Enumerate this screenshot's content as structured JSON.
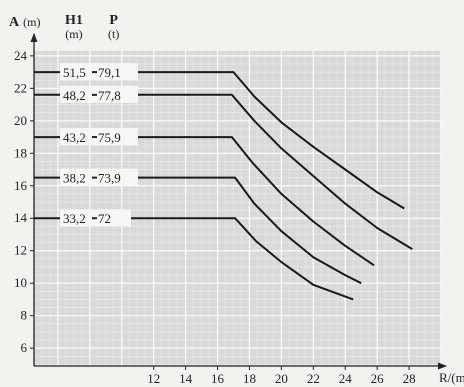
{
  "header": {
    "a_label": "A",
    "a_unit": "(m)",
    "h1_label": "H1",
    "h1_unit": "(m)",
    "p_label": "P",
    "p_unit": "(t)"
  },
  "chart_data": {
    "type": "line",
    "xlabel": "R/(m)",
    "ylabel": "A (m)",
    "xlim": [
      4.5,
      30
    ],
    "ylim": [
      4.9,
      24.3
    ],
    "x_ticks": [
      12,
      14,
      16,
      18,
      20,
      22,
      24,
      26,
      28
    ],
    "y_ticks": [
      6,
      8,
      10,
      12,
      14,
      16,
      18,
      20,
      22,
      24
    ],
    "grid": true,
    "series": [
      {
        "name": "51,5-79,1",
        "h1": "51,5",
        "p": "79,1",
        "x": [
          4.5,
          17.0,
          18.3,
          20.0,
          22.0,
          24.0,
          26.0,
          27.7
        ],
        "y": [
          23.0,
          23.0,
          21.5,
          19.9,
          18.4,
          17.0,
          15.6,
          14.6
        ]
      },
      {
        "name": "48,2-77,8",
        "h1": "48,2",
        "p": "77,8",
        "x": [
          4.5,
          16.9,
          18.3,
          20.0,
          22.0,
          24.0,
          26.0,
          28.2
        ],
        "y": [
          21.6,
          21.6,
          20.0,
          18.3,
          16.6,
          14.9,
          13.4,
          12.1
        ]
      },
      {
        "name": "43,2-75,9",
        "h1": "43,2",
        "p": "75,9",
        "x": [
          4.5,
          16.9,
          18.2,
          20.0,
          22.0,
          24.0,
          25.8
        ],
        "y": [
          19.0,
          19.0,
          17.4,
          15.5,
          13.8,
          12.3,
          11.1
        ]
      },
      {
        "name": "38,2-73,9",
        "h1": "38,2",
        "p": "73,9",
        "x": [
          4.5,
          17.1,
          18.3,
          20.0,
          22.0,
          24.0,
          25.0
        ],
        "y": [
          16.5,
          16.5,
          14.9,
          13.2,
          11.6,
          10.5,
          10.0
        ]
      },
      {
        "name": "33,2-72",
        "h1": "33,2",
        "p": "72",
        "x": [
          4.5,
          17.1,
          18.4,
          20.0,
          22.0,
          24.5
        ],
        "y": [
          14.0,
          14.0,
          12.6,
          11.3,
          9.9,
          9.0
        ]
      }
    ]
  }
}
